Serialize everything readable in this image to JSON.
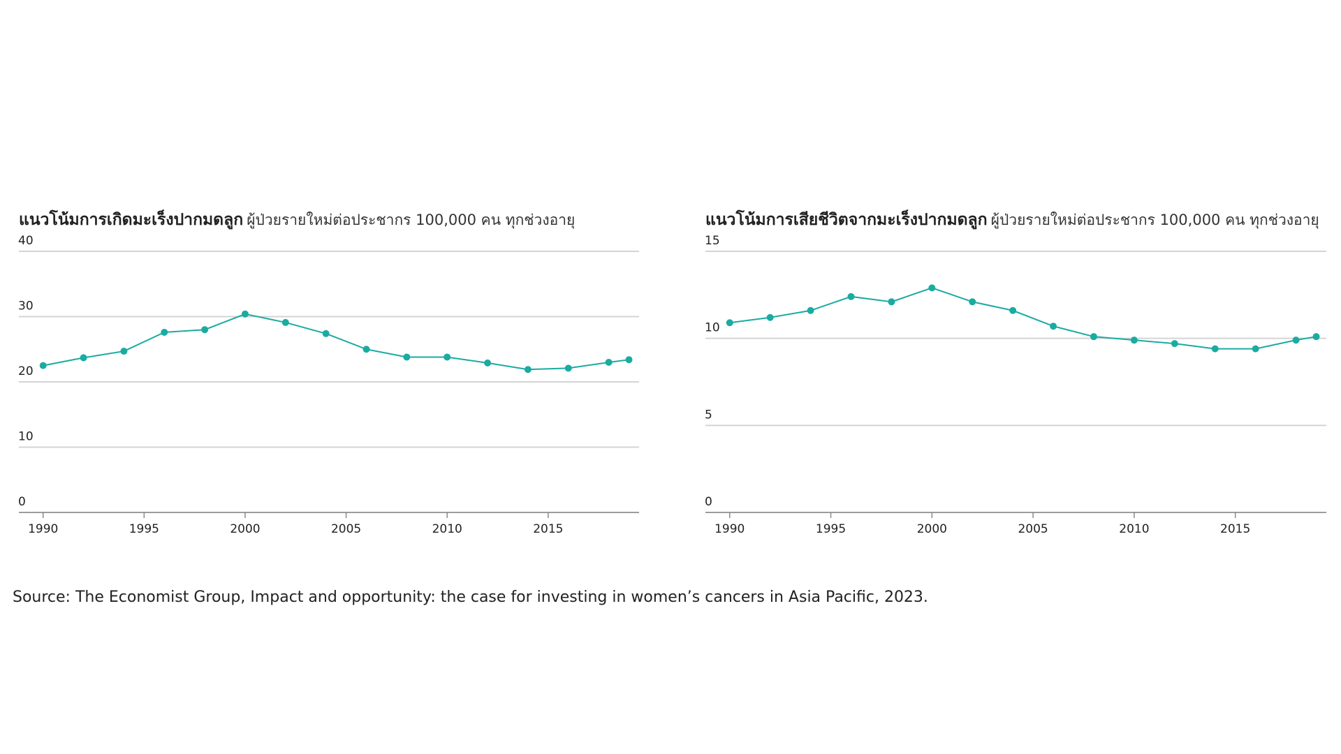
{
  "chart_data": [
    {
      "type": "line",
      "title": "แนวโน้มการเกิดมะเร็งปากมดลูก",
      "subtitle": "ผู้ป่วยรายใหม่ต่อประชากร 100,000 คน ทุกช่วงอายุ",
      "x": [
        1990,
        1992,
        1994,
        1996,
        1998,
        2000,
        2002,
        2004,
        2006,
        2008,
        2010,
        2012,
        2014,
        2016,
        2018,
        2019
      ],
      "series": [
        {
          "color": "#1aaba1",
          "values": [
            22.5,
            23.7,
            24.7,
            27.6,
            28.0,
            30.4,
            29.1,
            27.4,
            25.0,
            23.8,
            23.8,
            22.9,
            21.9,
            22.1,
            23.0,
            23.4
          ]
        }
      ],
      "xlim": [
        1988.8,
        2019.5
      ],
      "xticks": [
        1990,
        1995,
        2000,
        2005,
        2010,
        2015
      ],
      "ylim": [
        0,
        40
      ],
      "yticks": [
        0,
        10,
        20,
        30,
        40
      ],
      "grid": true
    },
    {
      "type": "line",
      "title": "แนวโน้มการเสียชีวิตจากมะเร็งปากมดลูก",
      "subtitle": "ผู้ป่วยรายใหม่ต่อประชากร 100,000 คน ทุกช่วงอายุ",
      "x": [
        1990,
        1992,
        1994,
        1996,
        1998,
        2000,
        2002,
        2004,
        2006,
        2008,
        2010,
        2012,
        2014,
        2016,
        2018,
        2019
      ],
      "series": [
        {
          "color": "#1aaba1",
          "values": [
            10.9,
            11.2,
            11.6,
            12.4,
            12.1,
            12.9,
            12.1,
            11.6,
            10.7,
            10.1,
            9.9,
            9.7,
            9.4,
            9.4,
            9.9,
            10.1
          ]
        }
      ],
      "xlim": [
        1988.8,
        2019.5
      ],
      "xticks": [
        1990,
        1995,
        2000,
        2005,
        2010,
        2015
      ],
      "ylim": [
        0,
        15
      ],
      "yticks": [
        0,
        5,
        10,
        15
      ],
      "grid": true
    }
  ],
  "source": "Source: The Economist Group, Impact and opportunity: the case for investing in women’s cancers in Asia Pacific, 2023."
}
